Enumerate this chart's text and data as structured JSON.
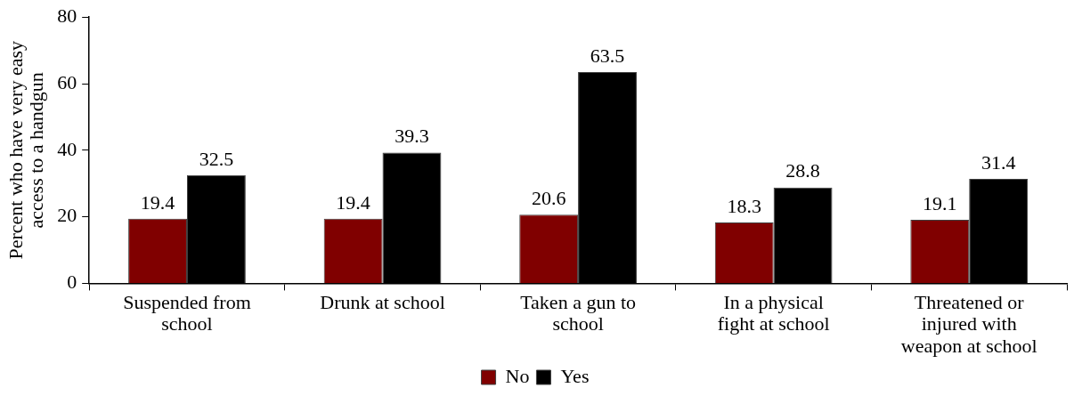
{
  "chart_data": {
    "type": "bar",
    "ylabel": "Percent who have very easy access to a handgun",
    "categories": [
      "Suspended from school",
      "Drunk at school",
      "Taken a gun to school",
      "In a physical fight at school",
      "Threatened or injured with weapon at school"
    ],
    "series": [
      {
        "name": "No",
        "color": "#800000",
        "values": [
          19.4,
          19.4,
          20.6,
          18.3,
          19.1
        ]
      },
      {
        "name": "Yes",
        "color": "#000000",
        "values": [
          32.5,
          39.3,
          63.5,
          28.8,
          31.4
        ]
      }
    ],
    "ylim": [
      0,
      80
    ],
    "yticks": [
      0,
      20,
      40,
      60,
      80
    ],
    "grid": false,
    "legend": "bottom",
    "data_labels": true
  }
}
